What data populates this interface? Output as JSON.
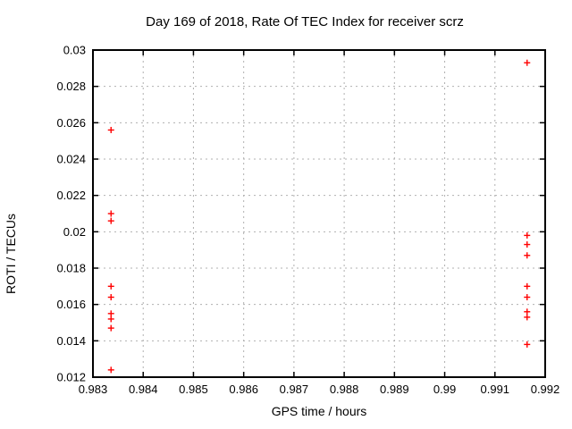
{
  "chart_data": {
    "type": "scatter",
    "title": "Day 169 of 2018, Rate Of TEC Index for receiver scrz",
    "xlabel": "GPS time / hours",
    "ylabel": "ROTI / TECUs",
    "xlim": [
      0.983,
      0.992
    ],
    "ylim": [
      0.012,
      0.03
    ],
    "xtick_values": [
      0.983,
      0.984,
      0.985,
      0.986,
      0.987,
      0.988,
      0.989,
      0.99,
      0.991,
      0.992
    ],
    "xtick_labels": [
      "0.983",
      "0.984",
      "0.985",
      "0.986",
      "0.987",
      "0.988",
      "0.989",
      "0.99",
      "0.991",
      "0.992"
    ],
    "ytick_values": [
      0.012,
      0.014,
      0.016,
      0.018,
      0.02,
      0.022,
      0.024,
      0.026,
      0.028,
      0.03
    ],
    "ytick_labels": [
      "0.012",
      "0.014",
      "0.016",
      "0.018",
      "0.02",
      "0.022",
      "0.024",
      "0.026",
      "0.028",
      "0.03"
    ],
    "grid": true,
    "legend": "none",
    "background": "#ffffff",
    "grid_color": "#b0b0b0",
    "border_color": "#000000",
    "text_color": "#000000",
    "series": [
      {
        "name": "ROTI",
        "marker": "plus",
        "color": "#ff0000",
        "points": [
          [
            0.98336,
            0.0256
          ],
          [
            0.98336,
            0.021
          ],
          [
            0.98336,
            0.0206
          ],
          [
            0.98336,
            0.017
          ],
          [
            0.98336,
            0.0164
          ],
          [
            0.98336,
            0.0155
          ],
          [
            0.98336,
            0.0152
          ],
          [
            0.98336,
            0.0147
          ],
          [
            0.98336,
            0.0124
          ],
          [
            0.99164,
            0.0293
          ],
          [
            0.99164,
            0.0198
          ],
          [
            0.99164,
            0.0193
          ],
          [
            0.99164,
            0.0187
          ],
          [
            0.99164,
            0.017
          ],
          [
            0.99164,
            0.0164
          ],
          [
            0.99164,
            0.0156
          ],
          [
            0.99164,
            0.0153
          ],
          [
            0.99164,
            0.0138
          ]
        ]
      }
    ]
  }
}
